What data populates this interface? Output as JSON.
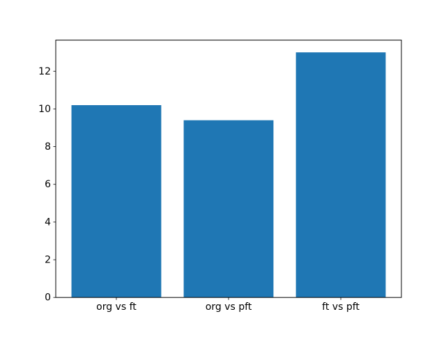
{
  "chart_data": {
    "type": "bar",
    "title": "",
    "xlabel": "",
    "ylabel": "",
    "categories": [
      "org vs ft",
      "org vs pft",
      "ft vs pft"
    ],
    "values": [
      10.2,
      9.4,
      13.0
    ],
    "yticks": [
      0,
      2,
      4,
      6,
      8,
      10,
      12
    ],
    "ylim": [
      0,
      13.65
    ],
    "bar_color": "#1f77b4",
    "spine_color": "#000000",
    "background_color": "#ffffff",
    "grid": false,
    "legend": null
  }
}
